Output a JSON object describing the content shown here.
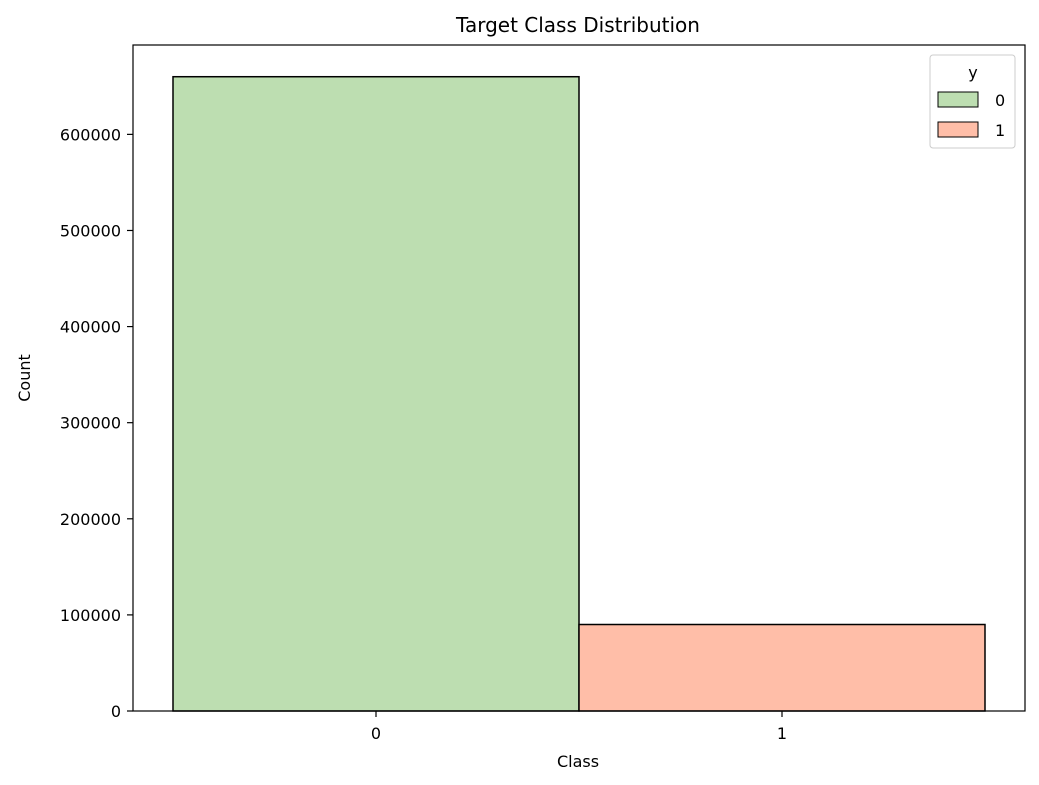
{
  "chart_data": {
    "type": "bar",
    "title": "Target Class Distribution",
    "xlabel": "Class",
    "ylabel": "Count",
    "categories": [
      "0",
      "1"
    ],
    "values": [
      660000,
      90000
    ],
    "colors": [
      "#bddeb1",
      "#ffbea8"
    ],
    "ylim": [
      0,
      693000
    ],
    "yticks": [
      0,
      100000,
      200000,
      300000,
      400000,
      500000,
      600000
    ],
    "grid": false,
    "legend": {
      "title": "y",
      "placement": "top-right",
      "entries": [
        {
          "label": "0",
          "color": "#bddeb1"
        },
        {
          "label": "1",
          "color": "#ffbea8"
        }
      ]
    }
  }
}
